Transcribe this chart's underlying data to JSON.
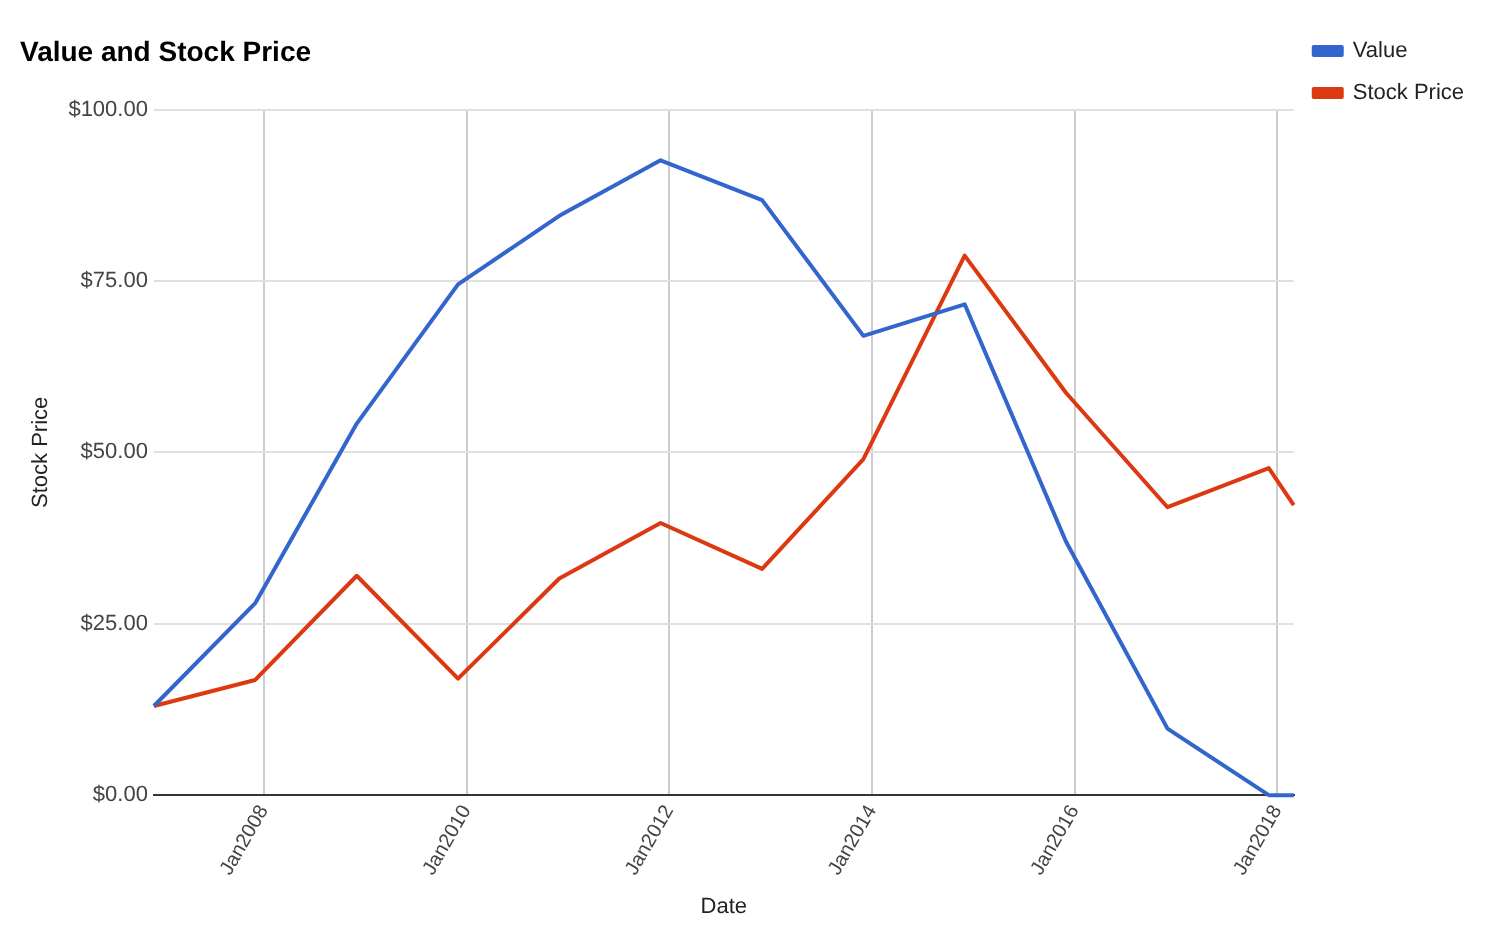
{
  "chart_data": {
    "type": "line",
    "title": "Value and Stock Price",
    "xlabel": "Date",
    "ylabel": "Stock Price",
    "x": [
      "2006-12",
      "2007-12",
      "2008-12",
      "2009-12",
      "2010-12",
      "2011-12",
      "2012-12",
      "2013-12",
      "2014-12",
      "2015-12",
      "2016-12",
      "2017-12",
      "2018-03"
    ],
    "series": [
      {
        "name": "Value",
        "color": "#3366cc",
        "values": [
          13,
          28,
          54.2,
          74.5,
          84.5,
          92.6,
          86.8,
          67,
          71.6,
          37,
          9.7,
          0,
          0
        ]
      },
      {
        "name": "Stock Price",
        "color": "#dc3912",
        "values": [
          13,
          16.8,
          32,
          17,
          31.6,
          39.7,
          33,
          49,
          78.7,
          58.7,
          42,
          47.7,
          42.3
        ]
      }
    ],
    "xlim": [
      "2006-12",
      "2018-03"
    ],
    "xticks": [
      {
        "value": "2008-01",
        "label": "Jan2008"
      },
      {
        "value": "2010-01",
        "label": "Jan2010"
      },
      {
        "value": "2012-01",
        "label": "Jan2012"
      },
      {
        "value": "2014-01",
        "label": "Jan2014"
      },
      {
        "value": "2016-01",
        "label": "Jan2016"
      },
      {
        "value": "2018-01",
        "label": "Jan2018"
      }
    ],
    "ylim": [
      0,
      100
    ],
    "yticks": [
      {
        "value": 0,
        "label": "$0.00"
      },
      {
        "value": 25,
        "label": "$25.00"
      },
      {
        "value": 50,
        "label": "$50.00"
      },
      {
        "value": 75,
        "label": "$75.00"
      },
      {
        "value": 100,
        "label": "$100.00"
      }
    ],
    "grid": true,
    "legend": "top right",
    "marker": "none",
    "line_style": "solid"
  }
}
